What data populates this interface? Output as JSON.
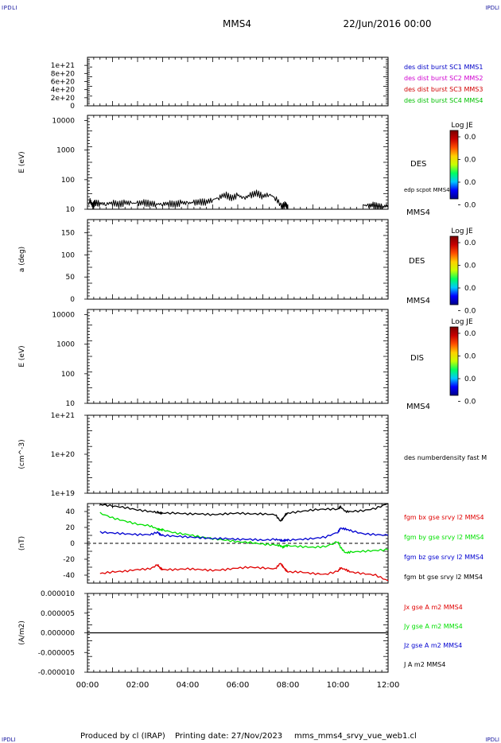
{
  "header": {
    "corner_label": "IPDLI",
    "spacecraft": "MMS4",
    "date": "22/Jun/2016 00:00"
  },
  "footer": {
    "produced": "Produced by cl (IRAP)",
    "printing": "Printing date: 27/Nov/2023",
    "file": "mms_mms4_srvy_vue_web1.cl"
  },
  "colors": {
    "mms1": "#0000c8",
    "mms2": "#d000d0",
    "mms3": "#d00000",
    "mms4": "#00c000",
    "bx": "#e00000",
    "by": "#00e000",
    "bz": "#0000d0",
    "bt": "#000000",
    "axis": "#000000"
  },
  "colorbar": {
    "title": "Log JE",
    "ticks": [
      "0.0",
      "0.0",
      "0.0",
      "0.0"
    ],
    "stops": [
      "#00008a",
      "#0000ff",
      "#00c8ff",
      "#00ff60",
      "#c8ff00",
      "#ffd000",
      "#ff5000",
      "#c80000",
      "#7a0000"
    ]
  },
  "chart_data": [
    {
      "type": "line",
      "id": "burst",
      "ylabel": "",
      "yticks": [
        "1e+21",
        "8e+20",
        "6e+20",
        "4e+20",
        "2e+20",
        "0"
      ],
      "ylim": [
        0,
        1.2e+21
      ],
      "dashed_zero": true,
      "series": [
        {
          "name": "des dist burst SC1 MMS1",
          "color_key": "mms1",
          "values": []
        },
        {
          "name": "des dist burst SC2 MMS2",
          "color_key": "mms2",
          "values": []
        },
        {
          "name": "des dist burst SC3 MMS3",
          "color_key": "mms3",
          "values": []
        },
        {
          "name": "des dist burst SC4 MMS4",
          "color_key": "mms4",
          "values": []
        }
      ]
    },
    {
      "type": "heatmap",
      "id": "des_energy",
      "ylabel": "E (eV)",
      "ylog": true,
      "yticks": [
        "10000",
        "1000",
        "100",
        "10"
      ],
      "ylim": [
        10,
        15000
      ],
      "instrument": "DES",
      "spacecraft_tag": "MMS4",
      "overlay_label": "edp scpot MMS4",
      "overlay_segments": [
        {
          "x": [
            0.05,
            0.1,
            0.2,
            0.3,
            0.5,
            0.75,
            1.0,
            1.25,
            1.5,
            1.75,
            2.0,
            2.25,
            2.5,
            2.75,
            3.0,
            3.25,
            3.5,
            3.75,
            4.0,
            4.25,
            4.5,
            4.75,
            5.0,
            5.25,
            5.5,
            5.75,
            6.0,
            6.25,
            6.5,
            6.75,
            7.0,
            7.25,
            7.5,
            7.75,
            7.9,
            8.0
          ],
          "y": [
            14,
            20,
            13,
            17,
            16,
            15,
            17,
            15,
            17,
            16,
            16,
            17,
            16,
            15,
            15,
            16,
            15,
            17,
            16,
            17,
            18,
            18,
            21,
            25,
            32,
            24,
            30,
            23,
            30,
            36,
            28,
            32,
            24,
            12,
            15,
            11
          ]
        },
        {
          "x": [
            11.0,
            11.2,
            11.4,
            11.6,
            11.8,
            12.0
          ],
          "y": [
            14,
            13,
            14,
            13,
            12,
            14
          ]
        }
      ]
    },
    {
      "type": "heatmap",
      "id": "des_pitch",
      "ylabel": "a (deg)",
      "yticks": [
        "150",
        "100",
        "50",
        "0"
      ],
      "ylim": [
        0,
        180
      ],
      "instrument": "DES",
      "spacecraft_tag": "MMS4"
    },
    {
      "type": "heatmap",
      "id": "dis_energy",
      "ylabel": "E (eV)",
      "ylog": true,
      "yticks": [
        "10000",
        "1000",
        "100",
        "10"
      ],
      "ylim": [
        10,
        15000
      ],
      "instrument": "DIS",
      "spacecraft_tag": "MMS4"
    },
    {
      "type": "line",
      "id": "density",
      "ylabel": "(cm^-3)",
      "ylog": true,
      "yticks": [
        "1e+21",
        "1e+20",
        "1e+19"
      ],
      "ylim": [
        1e+19,
        1e+21
      ],
      "series": [
        {
          "name": "des numberdensity fast M",
          "color_key": "bt",
          "values": []
        }
      ]
    },
    {
      "type": "line",
      "id": "fgm",
      "ylabel": "(nT)",
      "yticks": [
        "40",
        "20",
        "0",
        "-20",
        "-40"
      ],
      "ylim": [
        -50,
        50
      ],
      "dashed_zero": true,
      "x": [
        0.5,
        1.0,
        1.5,
        2.0,
        2.5,
        2.8,
        2.9,
        3.0,
        3.5,
        4.0,
        4.5,
        5.0,
        5.5,
        6.0,
        6.5,
        7.0,
        7.5,
        7.7,
        7.8,
        7.9,
        8.0,
        8.5,
        9.0,
        9.5,
        10.0,
        10.1,
        10.3,
        10.5,
        11.0,
        11.5,
        12.0
      ],
      "series": [
        {
          "name": "fgm bx gse srvy l2 MMS4",
          "color_key": "bx",
          "values": [
            -38,
            -36,
            -35,
            -33,
            -32,
            -27,
            -31,
            -33,
            -33,
            -32,
            -33,
            -34,
            -33,
            -31,
            -30,
            -31,
            -32,
            -25,
            -29,
            -33,
            -36,
            -36,
            -38,
            -39,
            -35,
            -31,
            -33,
            -36,
            -38,
            -40,
            -47
          ]
        },
        {
          "name": "fgm by gse srvy l2 MMS4",
          "color_key": "by",
          "values": [
            38,
            32,
            28,
            24,
            22,
            18,
            17,
            17,
            13,
            11,
            8,
            6,
            4,
            2,
            1,
            -1,
            -2,
            -3,
            -5,
            -3,
            -3,
            -4,
            -5,
            -4,
            2,
            -5,
            -12,
            -11,
            -10,
            -9,
            -8
          ]
        },
        {
          "name": "fgm bz gse srvy l2 MMS4",
          "color_key": "bz",
          "values": [
            14,
            13,
            12,
            11,
            11,
            14,
            11,
            10,
            9,
            8,
            7,
            6,
            6,
            5,
            5,
            4,
            5,
            4,
            3,
            4,
            4,
            5,
            6,
            8,
            14,
            19,
            18,
            16,
            12,
            11,
            10
          ]
        },
        {
          "name": "fgm bt gse srvy l2 MMS4",
          "color_key": "bt",
          "values": [
            49,
            47,
            45,
            42,
            40,
            39,
            38,
            38,
            38,
            37,
            37,
            36,
            37,
            38,
            37,
            37,
            36,
            28,
            31,
            36,
            38,
            40,
            42,
            43,
            43,
            46,
            40,
            40,
            41,
            44,
            50
          ]
        }
      ]
    },
    {
      "type": "line",
      "id": "current",
      "ylabel": "(A/m2)",
      "yticks": [
        "0.000010",
        "0.000005",
        "0.000000",
        "-0.000005",
        "-0.000010"
      ],
      "ylim": [
        -1e-05,
        1e-05
      ],
      "x": [
        0,
        12
      ],
      "series": [
        {
          "name": "Jx gse A m2 MMS4",
          "color_key": "bx",
          "values": [
            0,
            0
          ]
        },
        {
          "name": "Jy gse A m2 MMS4",
          "color_key": "by",
          "values": [
            0,
            0
          ]
        },
        {
          "name": "Jz gse A m2 MMS4",
          "color_key": "bz",
          "values": [
            0,
            0
          ]
        },
        {
          "name": "J A m2 MMS4",
          "color_key": "bt",
          "values": [
            0,
            0
          ]
        }
      ]
    }
  ],
  "xaxis": {
    "ticks": [
      "00:00",
      "02:00",
      "04:00",
      "06:00",
      "08:00",
      "10:00",
      "12:00"
    ],
    "range": [
      0,
      12
    ]
  }
}
